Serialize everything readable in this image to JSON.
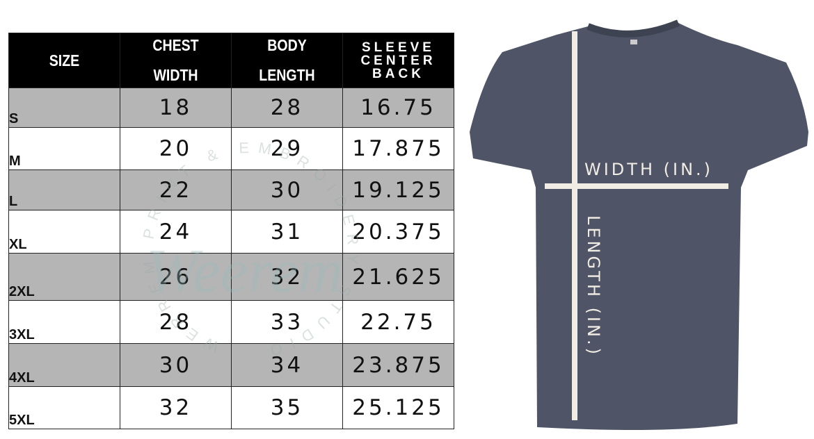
{
  "table": {
    "headers": {
      "size": "SIZE",
      "chest": [
        "CHEST",
        "WIDTH"
      ],
      "body": [
        "BODY",
        "LENGTH"
      ],
      "sleeve": [
        "SLEEVE",
        "CENTER",
        "BACK"
      ]
    },
    "rows": [
      {
        "size": "S",
        "chest": "18",
        "body": "28",
        "sleeve": "16.75"
      },
      {
        "size": "M",
        "chest": "20",
        "body": "29",
        "sleeve": "17.875"
      },
      {
        "size": "L",
        "chest": "22",
        "body": "30",
        "sleeve": "19.125"
      },
      {
        "size": "XL",
        "chest": "24",
        "body": "31",
        "sleeve": "20.375"
      },
      {
        "size": "2XL",
        "chest": "26",
        "body": "32",
        "sleeve": "21.625"
      },
      {
        "size": "3XL",
        "chest": "28",
        "body": "33",
        "sleeve": "22.75"
      },
      {
        "size": "4XL",
        "chest": "30",
        "body": "34",
        "sleeve": "23.875"
      },
      {
        "size": "5XL",
        "chest": "32",
        "body": "35",
        "sleeve": "25.125"
      }
    ]
  },
  "watermark": {
    "script": "Weerem",
    "ring": "WERREM PRINT & EMBROIDERY STUDIO"
  },
  "shirt": {
    "width_label": "WIDTH (IN.)",
    "length_label": "LENGTH (IN.)",
    "color": "#4f5566",
    "line_color": "#f1ede4"
  },
  "colors": {
    "header_bg": "#000000",
    "row_gray": "#b5b5b5"
  }
}
